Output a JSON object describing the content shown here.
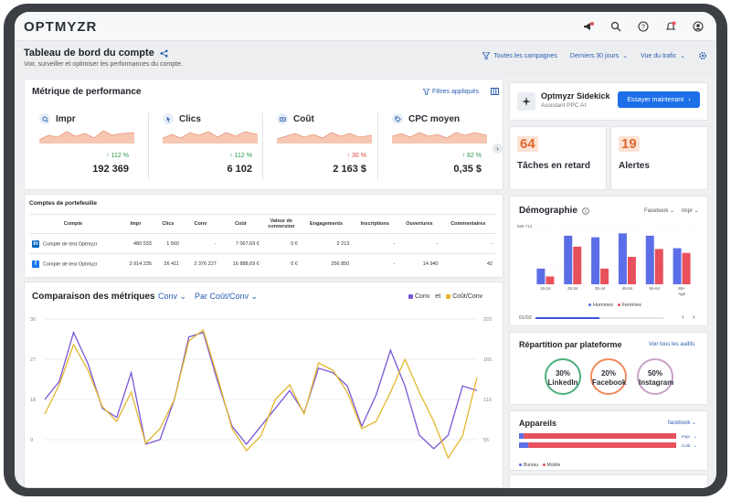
{
  "brand": {
    "logo": "OPTMYZR"
  },
  "topbar": {
    "icons": [
      "megaphone-icon",
      "search-icon",
      "help-icon",
      "bell-icon",
      "user-icon"
    ]
  },
  "header": {
    "title": "Tableau de bord du compte",
    "subtitle": "Voir, surveiller et optimiser les performances du compte.",
    "filters": {
      "campaigns": "Toutes les campagnes",
      "period": "Derniers 30 jours",
      "view": "Vue du trafic"
    }
  },
  "performance": {
    "title": "Métrique de performance",
    "applied_filters": "Filtres appliqués",
    "metrics": [
      {
        "name": "Impr",
        "change": "↑ 112 %",
        "value": "192 369",
        "trend": "up"
      },
      {
        "name": "Clics",
        "change": "↑ 112 %",
        "value": "6 102",
        "trend": "up"
      },
      {
        "name": "Coût",
        "change": "↑ 30 %",
        "value": "2 163 $",
        "trend": "down"
      },
      {
        "name": "CPC moyen",
        "change": "↑ 82 %",
        "value": "0,35 $",
        "trend": "up"
      }
    ]
  },
  "portfolio": {
    "title": "Comptes de portefeuille",
    "columns": [
      "Compte",
      "Impr",
      "Clics",
      "Conv",
      "Coût",
      "Valeur de conversion",
      "Engagements",
      "Inscriptions",
      "Ouvertures",
      "Commentaires"
    ],
    "rows": [
      {
        "badge": "in",
        "cells": [
          "Compte de test Optmyzr",
          "480 533",
          "1 560",
          "-",
          "7 067,69 €",
          "0 €",
          "2 213",
          "-",
          "-",
          "-"
        ]
      },
      {
        "badge": "f",
        "cells": [
          "Compte de test Optmyzr",
          "3 914 235",
          "26 411",
          "2 376 227",
          "16 888,69 €",
          "0 €",
          "256 850",
          "-",
          "14 940",
          "42"
        ]
      }
    ]
  },
  "comparison": {
    "title": "Comparaison des métriques",
    "metric1": "Conv",
    "metric2": "Par Coût/Conv",
    "legend": {
      "a": "Conv",
      "and": "et",
      "b": "Coût/Conv"
    }
  },
  "chart_data": [
    {
      "type": "line",
      "title": "Comparaison des métriques",
      "left_ticks": [
        "36",
        "27",
        "18",
        "9"
      ],
      "right_ticks": [
        "220",
        "165",
        "110",
        "55"
      ],
      "ylim_left": [
        0,
        36
      ],
      "ylim_right": [
        0,
        220
      ],
      "series": [
        {
          "name": "Conv",
          "axis": "left",
          "color": "#7b57d6",
          "values": [
            18,
            22,
            33,
            26,
            16,
            14,
            24,
            8,
            9,
            18,
            32,
            33,
            22,
            12,
            8,
            12,
            16,
            20,
            15,
            25,
            24,
            21,
            12,
            19,
            29,
            21,
            10,
            7,
            10,
            21,
            20
          ]
        },
        {
          "name": "Coût/Conv",
          "axis": "right",
          "color": "#e3b72c",
          "values": [
            90,
            130,
            185,
            150,
            100,
            80,
            120,
            50,
            70,
            110,
            190,
            205,
            140,
            70,
            40,
            60,
            110,
            130,
            90,
            160,
            150,
            120,
            70,
            80,
            120,
            165,
            120,
            80,
            30,
            60,
            140
          ]
        }
      ]
    },
    {
      "type": "bar",
      "title": "Démographie",
      "categories": [
        "18-24",
        "25-34",
        "35-44",
        "45-54",
        "55-64",
        "65+"
      ],
      "xlabel": "Age",
      "ylabel": "586 712",
      "series": [
        {
          "name": "Hommes",
          "color": "#5b6ee8",
          "values": [
            20,
            62,
            60,
            65,
            62,
            46
          ]
        },
        {
          "name": "Femmes",
          "color": "#e8505b",
          "values": [
            10,
            48,
            20,
            35,
            45,
            40
          ]
        }
      ]
    },
    {
      "type": "bar",
      "title": "Appareils",
      "categories": [
        "Impr",
        "Coût"
      ],
      "series": [
        {
          "name": "Bureau",
          "color": "#5b6ee8",
          "values": [
            3,
            6
          ]
        },
        {
          "name": "Mobile",
          "color": "#e8505b",
          "values": [
            97,
            94
          ]
        }
      ]
    }
  ],
  "sidekick": {
    "title": "Optmyzr Sidekick",
    "subtitle": "Assistant PPC AI",
    "button": "Essayer maintenant"
  },
  "stats": {
    "tasks": {
      "value": "64",
      "label": "Tâches en retard"
    },
    "alerts": {
      "value": "19",
      "label": "Alertes"
    }
  },
  "demographics": {
    "title": "Démographie",
    "dd1": "Facebook",
    "dd2": "Impr",
    "legend": [
      "Hommes",
      "Femmes"
    ],
    "pager": "01/02",
    "top_value": "586 712"
  },
  "platforms": {
    "title": "Répartition par plateforme",
    "link": "Voir tous les audits",
    "items": [
      {
        "pct": "30%",
        "name": "LinkedIn",
        "color": "#4caf7d"
      },
      {
        "pct": "20%",
        "name": "Facebook",
        "color": "#f08a5d"
      },
      {
        "pct": "50%",
        "name": "Instagram",
        "color": "#c9a2c8"
      }
    ]
  },
  "devices": {
    "title": "Appareils",
    "dropdown": "facebook",
    "rows": [
      "Impr",
      "Coût"
    ],
    "legend": [
      "Bureau",
      "Mobile"
    ]
  }
}
